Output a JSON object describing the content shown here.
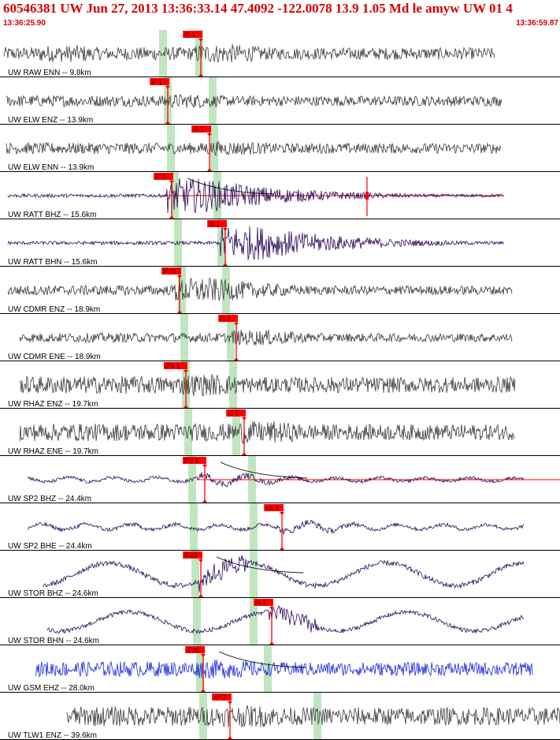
{
  "header": {
    "title": "60546381 UW Jun 27, 2013 13:36:33.14   47.4092 -122.0078 13.9 1.05 Md le amyw UW 01   4",
    "start_time": "13:36:25.90",
    "end_time": "13:36:59.87"
  },
  "colors": {
    "title": "#d90000",
    "trace_gray": "#3a3a3a",
    "trace_navy": "#2a0a5a",
    "trace_blue": "#1a2ae0",
    "pick_flag": "#ff0000",
    "pick_band": "#bfe6bf",
    "residual_line": "#ff0000",
    "decay_curve": "#000000"
  },
  "channels": [
    {
      "label": "UW RAW ENN -- 9.8km",
      "pick": "iS 1",
      "phase": "S",
      "color": "gray"
    },
    {
      "label": "UW ELW ENZ -- 13.9km",
      "pick": "iP 1",
      "phase": "P",
      "color": "gray"
    },
    {
      "label": "UW ELW ENN -- 13.9km",
      "pick": "iS 1",
      "phase": "S",
      "color": "gray"
    },
    {
      "label": "UW RATT BHZ -- 15.6km",
      "pick": "iP 1",
      "phase": "P",
      "color": "navy"
    },
    {
      "label": "UW RATT BHN -- 15.6km",
      "pick": "iS 1",
      "phase": "S",
      "color": "navy"
    },
    {
      "label": "UW CDMR ENZ -- 18.9km",
      "pick": "iPd0",
      "phase": "P",
      "color": "gray"
    },
    {
      "label": "UW CDMR ENE -- 18.9km",
      "pick": "iS 1",
      "phase": "S",
      "color": "gray"
    },
    {
      "label": "UW RHAZ ENZ -- 19.7km",
      "pick": "iPd 1",
      "phase": "P",
      "color": "gray"
    },
    {
      "label": "UW RHAZ ENE -- 19.7km",
      "pick": "iS 1",
      "phase": "S",
      "color": "gray"
    },
    {
      "label": "UW SP2 BHZ -- 24.4km",
      "pick": "iPd 1",
      "phase": "P",
      "color": "navy"
    },
    {
      "label": "UW SP2 BHE -- 24.4km",
      "pick": "eS 2",
      "phase": "S",
      "color": "navy"
    },
    {
      "label": "UW STOR BHZ -- 24.6km",
      "pick": "iPd0",
      "phase": "P",
      "color": "navy"
    },
    {
      "label": "UW STOR BHN -- 24.6km",
      "pick": "iS 1",
      "phase": "S",
      "color": "navy"
    },
    {
      "label": "UW GSM EHZ -- 28.0km",
      "pick": "iPd0",
      "phase": "P",
      "color": "blue"
    },
    {
      "label": "UW TLW1 ENZ -- 39.6km",
      "pick": "eP 2",
      "phase": "P",
      "color": "gray"
    }
  ]
}
